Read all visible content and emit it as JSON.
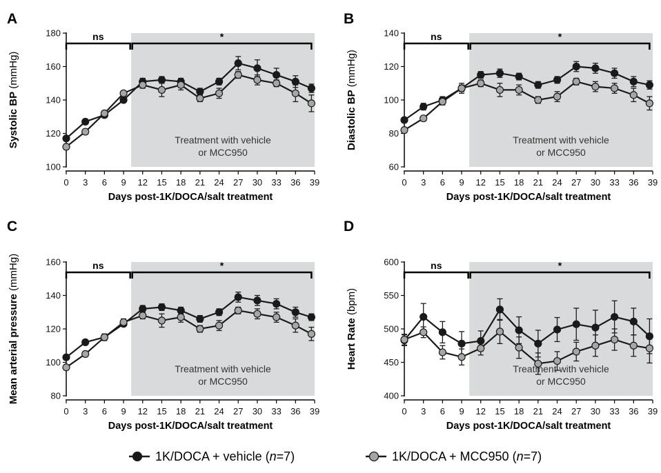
{
  "colors": {
    "vehicle": "#1a1a1a",
    "mcc950": "#a6a6a6",
    "shade": "#d9dadb"
  },
  "legend": [
    {
      "series": "vehicle",
      "label_main": "1K/DOCA + vehicle (",
      "label_n": "n",
      "label_tail": "=7)"
    },
    {
      "series": "mcc950",
      "label_main": "1K/DOCA + MCC950 (",
      "label_n": "n",
      "label_tail": "=7)"
    }
  ],
  "chart_data": [
    {
      "panel": "A",
      "type": "line",
      "ylabel_bold": "Systolic BP",
      "ylabel_unit": "(mmHg)",
      "xlabel": "Days post-1K/DOCA/salt treatment",
      "x_ticks": [
        "0",
        "3",
        "6",
        "9",
        "12",
        "15",
        "18",
        "21",
        "24",
        "27",
        "30",
        "33",
        "36",
        "39"
      ],
      "y_ticks": [
        100,
        120,
        140,
        160,
        180
      ],
      "ylim": [
        100,
        180
      ],
      "xlim": [
        0,
        39
      ],
      "shaded_from_x": 10.2,
      "shaded_to_x": 39,
      "annotation_lines": [
        "Treatment with vehicle",
        "or MCC950"
      ],
      "brackets": [
        {
          "label": "ns",
          "x0": 0,
          "x1": 10.2
        },
        {
          "label": "*",
          "x0": 10.2,
          "x1": 38.5
        }
      ],
      "series": [
        {
          "key": "vehicle",
          "x": [
            0,
            3,
            6,
            9,
            12,
            15,
            18,
            21,
            24,
            27,
            30,
            33,
            36,
            38.5
          ],
          "values": [
            117,
            127,
            131,
            140,
            151,
            152,
            151,
            145,
            151,
            162,
            159,
            155,
            151,
            147
          ],
          "errors": [
            1.5,
            1.5,
            1.5,
            1.5,
            2,
            2,
            2,
            2,
            2,
            4,
            5,
            4,
            3.5,
            2.5
          ]
        },
        {
          "key": "mcc950",
          "x": [
            0,
            3,
            6,
            9,
            12,
            15,
            18,
            21,
            24,
            27,
            30,
            33,
            36,
            38.5
          ],
          "values": [
            112,
            121,
            132,
            144,
            149,
            146,
            149,
            141,
            144,
            155,
            152,
            150,
            144,
            138
          ],
          "errors": [
            1.5,
            1.5,
            1.5,
            1.5,
            2,
            4,
            3,
            2,
            3,
            2,
            3,
            2,
            5,
            5
          ]
        }
      ]
    },
    {
      "panel": "B",
      "type": "line",
      "ylabel_bold": "Diastolic BP",
      "ylabel_unit": "(mmHg)",
      "xlabel": "Days post-1K/DOCA/salt treatment",
      "x_ticks": [
        "0",
        "3",
        "6",
        "9",
        "12",
        "15",
        "18",
        "21",
        "24",
        "27",
        "30",
        "33",
        "36",
        "39"
      ],
      "y_ticks": [
        60,
        80,
        100,
        120,
        140
      ],
      "ylim": [
        60,
        140
      ],
      "xlim": [
        0,
        39
      ],
      "shaded_from_x": 10.2,
      "shaded_to_x": 39,
      "annotation_lines": [
        "Treatment with vehicle",
        "or MCC950"
      ],
      "brackets": [
        {
          "label": "ns",
          "x0": 0,
          "x1": 10.2
        },
        {
          "label": "*",
          "x0": 10.2,
          "x1": 38.5
        }
      ],
      "series": [
        {
          "key": "vehicle",
          "x": [
            0,
            3,
            6,
            9,
            12,
            15,
            18,
            21,
            24,
            27,
            30,
            33,
            36,
            38.5
          ],
          "values": [
            88,
            96,
            100,
            107,
            115,
            116,
            114,
            109,
            112,
            120,
            119,
            116,
            111,
            109
          ],
          "errors": [
            1.5,
            2,
            2,
            2,
            2,
            2.5,
            2,
            2,
            2,
            3,
            3,
            3,
            3,
            2.5
          ]
        },
        {
          "key": "mcc950",
          "x": [
            0,
            3,
            6,
            9,
            12,
            15,
            18,
            21,
            24,
            27,
            30,
            33,
            36,
            38.5
          ],
          "values": [
            82,
            89,
            99,
            107,
            110,
            106,
            106,
            100,
            102,
            111,
            108,
            107,
            103,
            98
          ],
          "errors": [
            1.5,
            1.5,
            2,
            3,
            2,
            4,
            3,
            2,
            3,
            2,
            3,
            3,
            4,
            4
          ]
        }
      ]
    },
    {
      "panel": "C",
      "type": "line",
      "ylabel_bold": "Mean arterial pressure",
      "ylabel_unit": "(mmHg)",
      "xlabel": "Days post-1K/DOCA/salt treatment",
      "x_ticks": [
        "0",
        "3",
        "6",
        "9",
        "12",
        "15",
        "18",
        "21",
        "24",
        "27",
        "30",
        "33",
        "36",
        "39"
      ],
      "y_ticks": [
        80,
        100,
        120,
        140,
        160
      ],
      "ylim": [
        80,
        160
      ],
      "xlim": [
        0,
        39
      ],
      "shaded_from_x": 10.2,
      "shaded_to_x": 39,
      "annotation_lines": [
        "Treatment with vehicle",
        "or MCC950"
      ],
      "brackets": [
        {
          "label": "ns",
          "x0": 0,
          "x1": 10.2
        },
        {
          "label": "*",
          "x0": 10.2,
          "x1": 38.5
        }
      ],
      "series": [
        {
          "key": "vehicle",
          "x": [
            0,
            3,
            6,
            9,
            12,
            15,
            18,
            21,
            24,
            27,
            30,
            33,
            36,
            38.5
          ],
          "values": [
            103,
            112,
            115,
            123,
            132,
            133,
            131,
            126,
            130,
            139,
            137,
            135,
            130,
            127
          ],
          "errors": [
            1.5,
            1.5,
            1.5,
            1.5,
            2,
            2,
            2,
            2,
            2,
            3,
            3,
            3,
            3,
            2
          ]
        },
        {
          "key": "mcc950",
          "x": [
            0,
            3,
            6,
            9,
            12,
            15,
            18,
            21,
            24,
            27,
            30,
            33,
            36,
            38.5
          ],
          "values": [
            97,
            105,
            115,
            124,
            128,
            125,
            127,
            120,
            122,
            131,
            129,
            127,
            122,
            117
          ],
          "errors": [
            1.5,
            1.5,
            2,
            2,
            2,
            4,
            3,
            2,
            3,
            2,
            3,
            3,
            4,
            4
          ]
        }
      ]
    },
    {
      "panel": "D",
      "type": "line",
      "ylabel_bold": "Heart Rate",
      "ylabel_unit": "(bpm)",
      "xlabel": "Days post-1K/DOCA/salt treatment",
      "x_ticks": [
        "0",
        "3",
        "6",
        "9",
        "12",
        "15",
        "18",
        "21",
        "24",
        "27",
        "30",
        "33",
        "36",
        "39"
      ],
      "y_ticks": [
        400,
        450,
        500,
        550,
        600
      ],
      "ylim": [
        400,
        600
      ],
      "xlim": [
        0,
        39
      ],
      "shaded_from_x": 10.2,
      "shaded_to_x": 39,
      "annotation_lines": [
        "Treatment with vehicle",
        "or MCC950"
      ],
      "brackets": [
        {
          "label": "ns",
          "x0": 0,
          "x1": 10.2
        },
        {
          "label": "*",
          "x0": 10.2,
          "x1": 38.5
        }
      ],
      "series": [
        {
          "key": "vehicle",
          "x": [
            0,
            3,
            6,
            9,
            12,
            15,
            18,
            21,
            24,
            27,
            30,
            33,
            36,
            38.5
          ],
          "values": [
            483,
            518,
            495,
            478,
            482,
            529,
            498,
            478,
            499,
            507,
            502,
            518,
            511,
            489
          ],
          "errors": [
            8,
            20,
            16,
            18,
            15,
            16,
            20,
            20,
            18,
            24,
            26,
            24,
            20,
            26
          ]
        },
        {
          "key": "mcc950",
          "x": [
            0,
            3,
            6,
            9,
            12,
            15,
            18,
            21,
            24,
            27,
            30,
            33,
            36,
            38.5
          ],
          "values": [
            484,
            495,
            465,
            458,
            471,
            496,
            472,
            448,
            452,
            466,
            475,
            484,
            475,
            471
          ],
          "errors": [
            8,
            8,
            10,
            12,
            10,
            18,
            16,
            16,
            14,
            14,
            16,
            16,
            16,
            22
          ]
        }
      ]
    }
  ]
}
